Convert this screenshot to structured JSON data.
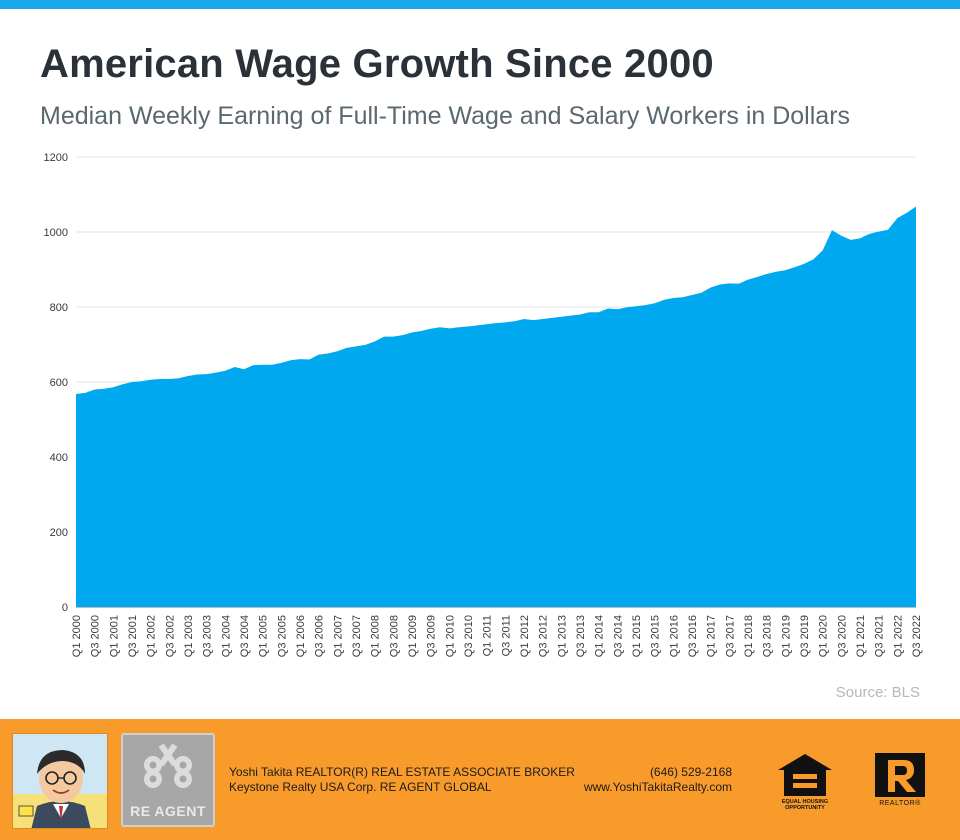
{
  "header": {
    "title": "American Wage Growth Since 2000",
    "subtitle": "Median Weekly Earning of Full-Time Wage and Salary Workers in Dollars"
  },
  "source": "Source: BLS",
  "colors": {
    "area": "#00a8ef",
    "top_bar": "#1aa7ec",
    "footer": "#f89b2b",
    "grid": "#e3e3e3"
  },
  "chart_data": {
    "type": "area",
    "title": "American Wage Growth Since 2000",
    "subtitle": "Median Weekly Earning of Full-Time Wage and Salary Workers in Dollars",
    "xlabel": "",
    "ylabel": "",
    "ylim": [
      0,
      1200
    ],
    "yticks": [
      0,
      200,
      400,
      600,
      800,
      1000,
      1200
    ],
    "grid": true,
    "legend": "none",
    "x": [
      "Q1 2000",
      "Q2 2000",
      "Q3 2000",
      "Q4 2000",
      "Q1 2001",
      "Q2 2001",
      "Q3 2001",
      "Q4 2001",
      "Q1 2002",
      "Q2 2002",
      "Q3 2002",
      "Q4 2002",
      "Q1 2003",
      "Q2 2003",
      "Q3 2003",
      "Q4 2003",
      "Q1 2004",
      "Q2 2004",
      "Q3 2004",
      "Q4 2004",
      "Q1 2005",
      "Q2 2005",
      "Q3 2005",
      "Q4 2005",
      "Q1 2006",
      "Q2 2006",
      "Q3 2006",
      "Q4 2006",
      "Q1 2007",
      "Q2 2007",
      "Q3 2007",
      "Q4 2007",
      "Q1 2008",
      "Q2 2008",
      "Q3 2008",
      "Q4 2008",
      "Q1 2009",
      "Q2 2009",
      "Q3 2009",
      "Q4 2009",
      "Q1 2010",
      "Q2 2010",
      "Q3 2010",
      "Q4 2010",
      "Q1 2011",
      "Q2 2011",
      "Q3 2011",
      "Q4 2011",
      "Q1 2012",
      "Q2 2012",
      "Q3 2012",
      "Q4 2012",
      "Q1 2013",
      "Q2 2013",
      "Q3 2013",
      "Q4 2013",
      "Q1 2014",
      "Q2 2014",
      "Q3 2014",
      "Q4 2014",
      "Q1 2015",
      "Q2 2015",
      "Q3 2015",
      "Q4 2015",
      "Q1 2016",
      "Q2 2016",
      "Q3 2016",
      "Q4 2016",
      "Q1 2017",
      "Q2 2017",
      "Q3 2017",
      "Q4 2017",
      "Q1 2018",
      "Q2 2018",
      "Q3 2018",
      "Q4 2018",
      "Q1 2019",
      "Q2 2019",
      "Q3 2019",
      "Q4 2019",
      "Q1 2020",
      "Q2 2020",
      "Q3 2020",
      "Q4 2020",
      "Q1 2021",
      "Q2 2021",
      "Q3 2021",
      "Q4 2021",
      "Q1 2022",
      "Q2 2022",
      "Q3 2022"
    ],
    "xticks": [
      "Q1 2000",
      "Q3 2000",
      "Q1 2001",
      "Q3 2001",
      "Q1 2002",
      "Q3 2002",
      "Q1 2003",
      "Q3 2003",
      "Q1 2004",
      "Q3 2004",
      "Q1 2005",
      "Q3 2005",
      "Q1 2006",
      "Q3 2006",
      "Q1 2007",
      "Q3 2007",
      "Q1 2008",
      "Q3 2008",
      "Q1 2009",
      "Q3 2009",
      "Q1 2010",
      "Q3 2010",
      "Q1 2011",
      "Q3 2011",
      "Q1 2012",
      "Q3 2012",
      "Q1 2013",
      "Q3 2013",
      "Q1 2014",
      "Q3 2014",
      "Q1 2015",
      "Q3 2015",
      "Q1 2016",
      "Q3 2016",
      "Q1 2017",
      "Q3 2017",
      "Q1 2018",
      "Q3 2018",
      "Q1 2019",
      "Q3 2019",
      "Q1 2020",
      "Q3 2020",
      "Q1 2021",
      "Q3 2021",
      "Q1 2022",
      "Q3 2022"
    ],
    "series": [
      {
        "values": [
          568,
          571,
          580,
          582,
          586,
          594,
          600,
          602,
          606,
          608,
          608,
          610,
          616,
          620,
          621,
          625,
          630,
          640,
          634,
          645,
          646,
          646,
          651,
          658,
          661,
          660,
          673,
          676,
          682,
          691,
          695,
          699,
          708,
          721,
          721,
          725,
          732,
          736,
          742,
          746,
          743,
          746,
          748,
          751,
          754,
          757,
          759,
          762,
          768,
          765,
          768,
          771,
          774,
          777,
          780,
          786,
          786,
          796,
          794,
          799,
          802,
          805,
          810,
          819,
          824,
          826,
          832,
          838,
          852,
          860,
          863,
          862,
          873,
          880,
          888,
          894,
          898,
          906,
          915,
          927,
          951,
          1005,
          990,
          979,
          983,
          995,
          1001,
          1006,
          1037,
          1051,
          1068
        ]
      }
    ]
  },
  "footer": {
    "agent_line": "Yoshi Takita REALTOR(R) REAL ESTATE ASSOCIATE BROKER",
    "company_line": "Keystone Realty USA Corp.  RE AGENT GLOBAL",
    "phone": "(646) 529-2168",
    "website": "www.YoshiTakitaRealty.com",
    "brand_logo_text": "RE AGENT",
    "equal_housing_text": [
      "EQUAL HOUSING",
      "OPPORTUNITY"
    ],
    "realtor_mark_text": "REALTOR®",
    "icons": [
      "caricature-avatar",
      "re-agent-keys-logo",
      "equal-housing-icon",
      "realtor-r-icon"
    ]
  }
}
